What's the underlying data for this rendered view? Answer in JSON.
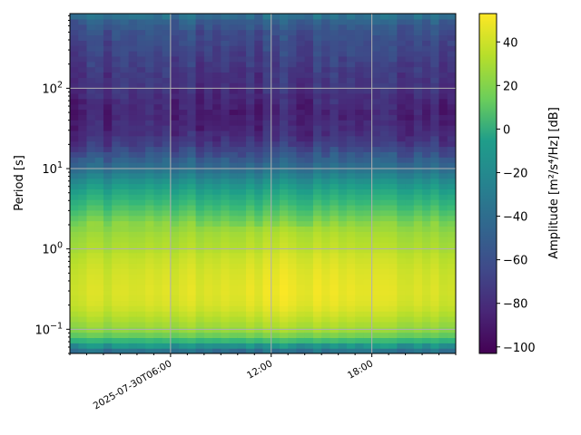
{
  "chart_data": {
    "type": "heatmap",
    "title": "",
    "xlabel": "",
    "ylabel": "Period [s]",
    "x_tick_labels": [
      "2025-07-30T06:00",
      "12:00",
      "18:00"
    ],
    "x_tick_hours": [
      6,
      12,
      18
    ],
    "x_range_hours": [
      0,
      23
    ],
    "y_scale": "log",
    "y_range": [
      0.05,
      850
    ],
    "y_tick_values": [
      0.1,
      1,
      10,
      100
    ],
    "y_tick_labels": [
      "10^-1",
      "10^0",
      "10^1",
      "10^2"
    ],
    "grid": true,
    "colormap": "viridis",
    "colorbar": {
      "label": "Amplitude [m²/s⁴/Hz] [dB]",
      "range": [
        -103,
        53
      ],
      "ticks": [
        40,
        20,
        0,
        -20,
        -40,
        -60,
        -80,
        -100
      ]
    },
    "profile_periods": [
      0.05,
      0.06,
      0.07,
      0.08,
      0.1,
      0.15,
      0.2,
      0.3,
      0.5,
      0.8,
      1,
      1.5,
      2,
      3,
      5,
      7,
      10,
      15,
      20,
      30,
      50,
      70,
      100,
      150,
      200,
      300,
      500,
      700,
      850
    ],
    "profile_db": [
      -55,
      -30,
      -5,
      15,
      28,
      38,
      44,
      46,
      44,
      40,
      36,
      32,
      26,
      10,
      -10,
      -25,
      -45,
      -62,
      -75,
      -85,
      -88,
      -85,
      -80,
      -78,
      -75,
      -70,
      -65,
      -55,
      -40
    ]
  }
}
